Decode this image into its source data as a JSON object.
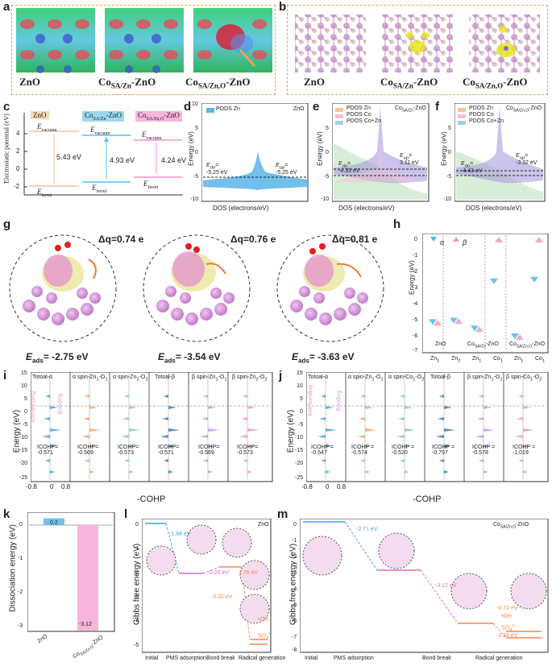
{
  "panels": {
    "a": {
      "label": "a",
      "captions": [
        "ZnO",
        "Co",
        "SA/Zn",
        "-ZnO",
        "Co",
        "SA/Zn,O",
        "-ZnO"
      ]
    },
    "b": {
      "label": "b",
      "captions": [
        "ZnO",
        "Co",
        "SA/Zn",
        "-ZnO",
        "Co",
        "SA/Zn,O",
        "-ZnO"
      ]
    },
    "c": {
      "label": "c",
      "ylabel": "Electrostatic potential (eV)",
      "yticks": [
        "4",
        "2",
        "0",
        "-2"
      ],
      "cols": [
        {
          "name": "ZnO",
          "vac": "E",
          "vsub": "vacuum",
          "gap": "5.43 eV",
          "fermi": "E",
          "fsub": "fermi",
          "color": "#f7d9b5"
        },
        {
          "name": "Co",
          "nsub": "SA/Zn",
          "nsuf": "-ZnO",
          "vac": "E",
          "vsub": "vacuum",
          "gap": "4.93 eV",
          "fermi": "E",
          "fsub": "fermi",
          "color": "#9bd8ee"
        },
        {
          "name": "Co",
          "nsub": "SA/Zn,O",
          "nsuf": "-ZnO",
          "vac": "E",
          "vsub": "vacuum",
          "gap": "4.24 eV",
          "fermi": "E",
          "fsub": "fermi",
          "color": "#f6b6dc"
        }
      ]
    },
    "d": {
      "label": "d",
      "title": "ZnO",
      "legend": "PODS Zn",
      "ylabel": "Energy (eV)",
      "xlabel": "DOS (electrons/eV)",
      "ed": "-5.25 eV",
      "ep": "-5.25 eV",
      "edl": "E",
      "edsub": "do",
      "epl": "E",
      "epsub": "up",
      "yticks": [
        "10",
        "5",
        "0",
        "-5",
        "-10"
      ]
    },
    "e": {
      "label": "e",
      "title": "Co",
      "tsub": "SA/Zn",
      "tsuf": "-ZnO",
      "legend": [
        "PDOS Zn",
        "PDOS Co",
        "PDOS Co+Zn"
      ],
      "ylabel": "Energy (eV)",
      "xlabel": "DOS (electrons/eV)",
      "ed": "-4.33 eV",
      "ep": "3.11 eV",
      "yticks": [
        "5",
        "0",
        "-5",
        "-10"
      ]
    },
    "f": {
      "label": "f",
      "title": "Co",
      "tsub": "SA/Zn,O",
      "tsuf": "-ZnO",
      "legend": [
        "PDOS Zn",
        "PDOS Co",
        "PDOS Co+Zn"
      ],
      "ylabel": "Energy (eV)",
      "xlabel": "DOS (electrons/eV)",
      "ed": "-4.43 eV",
      "ep": "-3.32 eV",
      "yticks": [
        "5",
        "0",
        "-5",
        "-10"
      ]
    },
    "g": {
      "label": "g",
      "dq": [
        "Δq=0.74 e",
        "Δq=0.76 e",
        "Δq=0.81 e"
      ],
      "eads": [
        "-2.75 eV",
        "-3.54 eV",
        "-3.63 eV"
      ],
      "eadsl": "E",
      "eadssub": "ads",
      "eq": "= "
    },
    "h": {
      "label": "h",
      "ylabel": "Energy (eV)",
      "legend": [
        "α",
        "β"
      ],
      "yticks": [
        "0",
        "-1",
        "-2",
        "-3",
        "-4",
        "-5",
        "-6",
        "-7"
      ],
      "xticks": [
        "Zn",
        "1",
        "Zn",
        "2",
        "Zn",
        "1",
        "Co",
        "1",
        "Zn",
        "1",
        "Co",
        "1"
      ],
      "groups": [
        "ZnO",
        "Co",
        "SA/Zn",
        "-ZnO",
        "Co",
        "SA/Zn,O",
        "-ZnO"
      ]
    },
    "i": {
      "label": "i",
      "ylabel": "Energy (eV)",
      "xlabel": "-COHP",
      "yticks": [
        "15",
        "10",
        "5",
        "0",
        "-5",
        "-10",
        "-15",
        "-20",
        "-25"
      ],
      "xticks": [
        "-0.8",
        "0",
        "0.8"
      ],
      "cols": [
        "Totoal-α",
        "α spin-Zn",
        "1",
        "-O",
        "1",
        "α spin-Zn",
        "2",
        "-O",
        "2",
        "Totoal-β",
        "β spin-Zn",
        "1",
        "-O",
        "1",
        "β spin-Zn",
        "2",
        "-O",
        "2"
      ],
      "icohp": [
        "ICOHP=",
        "-0.571",
        "ICOHP=",
        "-0.569",
        "ICOHP=",
        "-0.573",
        "ICOHP=",
        "-0.571",
        "ICOHP=",
        "-0.569",
        "ICOHP=",
        "-0.573"
      ],
      "antibonding": "Anti-bonding",
      "bonding": "Bonding"
    },
    "j": {
      "label": "j",
      "ylabel": "Energy (eV)",
      "xlabel": "-COHP",
      "yticks": [
        "15",
        "10",
        "5",
        "0",
        "-5",
        "-10",
        "-15",
        "-20",
        "-25"
      ],
      "xticks": [
        "-0.8",
        "0",
        "0.8"
      ],
      "cols": [
        "Totoal-α",
        "α spin-Zn",
        "1",
        "-O",
        "1",
        "α spin-Co",
        "1",
        "-O",
        "2",
        "Totoal-β",
        "β spin-Zn",
        "1",
        "-O",
        "1",
        "β spin-Co",
        "1",
        "-O",
        "2"
      ],
      "icohp": [
        "ICOHP =",
        "-0.547",
        "ICOHP =",
        "-0.574",
        "ICOHP =",
        "-0.520",
        "ICOHP =",
        "-0.797",
        "ICOHP =",
        "-0.578",
        "ICOHP =",
        "-1.019"
      ],
      "antibonding": "Anti-bonding",
      "bonding": "Bonding"
    },
    "k": {
      "label": "k",
      "ylabel": "Dissociation energy (eV)",
      "yticks": [
        "0",
        "-1",
        "-2",
        "-3"
      ],
      "xticks": [
        "ZnO",
        "Co",
        "SA/Zn,O",
        "-ZnO"
      ],
      "values": [
        "0.2",
        "-3.12"
      ]
    },
    "l": {
      "label": "l",
      "title": "ZnO",
      "ylabel": "Gibbs free energy (eV)",
      "xticks": [
        "Initial",
        "PMS adsorption",
        "Bond break",
        "Radical generation"
      ],
      "yticks": [
        "0",
        "-1",
        "-2",
        "-3",
        "-4",
        "-5"
      ],
      "ann": [
        "-1.84 eV",
        "0.20 eV",
        "1.76 eV",
        "-2.32 eV",
        "•OH",
        "SO",
        "4",
        "•−"
      ]
    },
    "m": {
      "label": "m",
      "title": "Co",
      "tsub": "SA/Zn,O",
      "tsuf": "-ZnO",
      "ylabel": "Gibbs free energy (eV)",
      "xticks": [
        "Initial",
        "PMS adsorption",
        "Bond break",
        "Radical generation"
      ],
      "yticks": [
        "0",
        "-1",
        "-2",
        "-3",
        "-4",
        "-5",
        "-6",
        "-7",
        "-8"
      ],
      "ann": [
        "-2.71 eV",
        "-3.12 eV",
        "-0.72 eV",
        "•OH",
        "SO",
        "4",
        "•−",
        "-1.34 eV"
      ]
    }
  },
  "chart_data": [
    {
      "type": "bar",
      "title": "k",
      "categories": [
        "ZnO",
        "CoSA/Zn,O-ZnO"
      ],
      "values": [
        0.2,
        -3.12
      ],
      "ylabel": "Dissociation energy (eV)",
      "ylim": [
        -3.4,
        0.5
      ]
    },
    {
      "type": "scatter",
      "title": "h",
      "ylabel": "Energy (eV)",
      "ylim": [
        -7,
        0.3
      ],
      "series": [
        {
          "name": "α",
          "values": [
            -5.2,
            -5.1,
            -5.6,
            -2.6,
            -6.1,
            -2.5
          ]
        },
        {
          "name": "β",
          "values": [
            -5.3,
            -5.2,
            -5.7,
            0,
            -6.2,
            0
          ]
        }
      ],
      "categories": [
        "Zn1",
        "Zn2",
        "Zn1",
        "Co1",
        "Zn1",
        "Co1"
      ]
    },
    {
      "type": "line",
      "title": "l",
      "ylabel": "Gibbs free energy (eV)",
      "categories": [
        "Initial",
        "PMS adsorption",
        "Bond break",
        "Radical generation"
      ],
      "series": [
        {
          "name": "ZnO",
          "values": [
            0,
            -1.84,
            -1.64,
            0.12
          ]
        }
      ]
    },
    {
      "type": "line",
      "title": "m",
      "ylabel": "Gibbs free energy (eV)",
      "categories": [
        "Initial",
        "PMS adsorption",
        "Bond break",
        "Radical generation"
      ],
      "series": [
        {
          "name": "CoSA/Zn,O-ZnO",
          "values": [
            0,
            -2.71,
            -5.83,
            -6.55
          ]
        }
      ]
    }
  ]
}
